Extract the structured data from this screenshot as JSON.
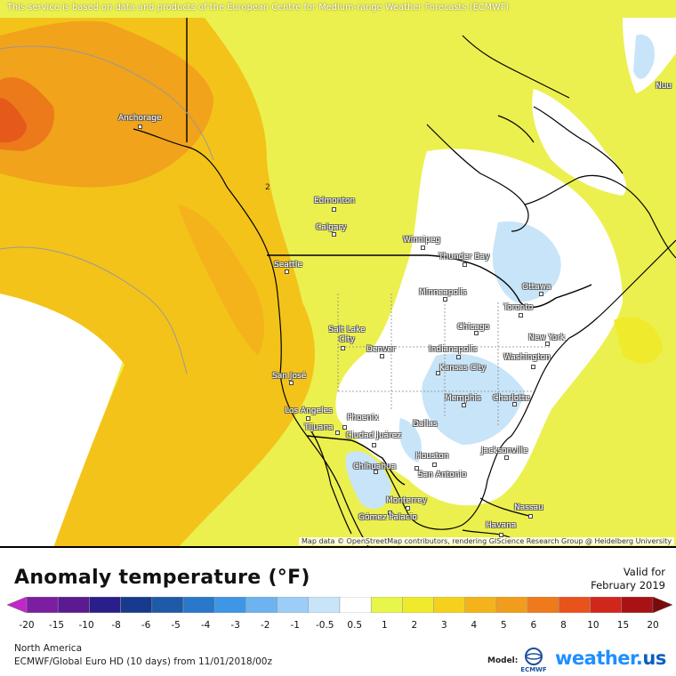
{
  "map": {
    "notice": "This service is based on data and products of the European Centre for Medium-range Weather Forecasts (ECMWF)",
    "attribution": "Map data © OpenStreetMap contributors, rendering GIScience Research Group @ Heidelberg University",
    "contour_label": "2",
    "cities": [
      {
        "name": "Anchorage"
      },
      {
        "name": "Edmonton"
      },
      {
        "name": "Calgary"
      },
      {
        "name": "Winnipeg"
      },
      {
        "name": "Thunder Bay"
      },
      {
        "name": "Seattle"
      },
      {
        "name": "Minneapolis"
      },
      {
        "name": "Ottawa"
      },
      {
        "name": "Toronto"
      },
      {
        "name": "Salt Lake City"
      },
      {
        "name": "Chicago"
      },
      {
        "name": "New York"
      },
      {
        "name": "Denver"
      },
      {
        "name": "Indianapolis"
      },
      {
        "name": "Washington"
      },
      {
        "name": "Kansas City"
      },
      {
        "name": "San José"
      },
      {
        "name": "Memphis"
      },
      {
        "name": "Charlotte"
      },
      {
        "name": "Los Angeles"
      },
      {
        "name": "Phoenix"
      },
      {
        "name": "Tijuana"
      },
      {
        "name": "Ciudad Juárez"
      },
      {
        "name": "Dallas"
      },
      {
        "name": "Jacksonville"
      },
      {
        "name": "Houston"
      },
      {
        "name": "Chihuahua"
      },
      {
        "name": "San Antonio"
      },
      {
        "name": "Monterrey"
      },
      {
        "name": "Nassau"
      },
      {
        "name": "Gómez Palacio"
      },
      {
        "name": "Havana"
      },
      {
        "name": "Nuu"
      }
    ]
  },
  "legend": {
    "title": "Anomaly temperature (°F)",
    "valid_line1": "Valid for",
    "valid_line2": "February 2019",
    "ticks": [
      "-20",
      "-15",
      "-10",
      "-8",
      "-6",
      "-5",
      "-4",
      "-3",
      "-2",
      "-1",
      "-0.5",
      "0.5",
      "1",
      "2",
      "3",
      "4",
      "5",
      "6",
      "8",
      "10",
      "15",
      "20"
    ],
    "colors": [
      "#c226c9",
      "#7b1fa0",
      "#5b1a8f",
      "#2a1e8a",
      "#183a8c",
      "#1f5aa8",
      "#2a78c9",
      "#3f96e6",
      "#6cb3f0",
      "#9ccdf6",
      "#c8e4f9",
      "#ffffff",
      "#e8f54a",
      "#f0ea2c",
      "#f5d11e",
      "#f4b31a",
      "#f19c1c",
      "#ee7a1b",
      "#e8521b",
      "#d0261c",
      "#a81214",
      "#7a0a0c"
    ]
  },
  "footer": {
    "region": "North America",
    "model_run": "ECMWF/Global Euro HD (10 days) from 11/01/2018/00z",
    "model_label": "Model:",
    "ecmwf_logo_text": "ECMWF",
    "brand_name": "weather",
    "brand_dot": ".",
    "brand_tld": "us"
  }
}
